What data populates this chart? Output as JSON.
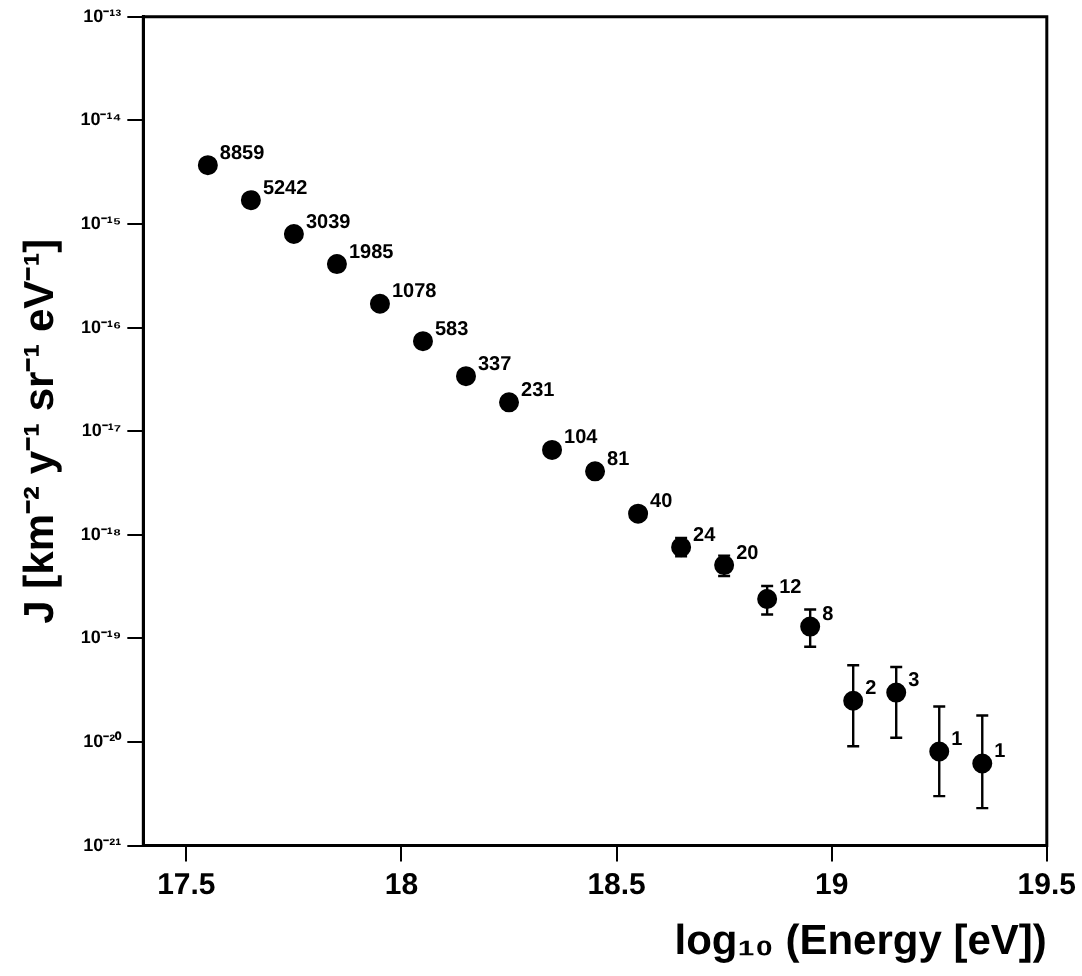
{
  "chart_data": {
    "type": "scatter",
    "xlabel": "log₁₀ (Energy [eV])",
    "ylabel": "J [km⁻² y⁻¹ sr⁻¹ eV⁻¹]",
    "log": "y",
    "grid": false,
    "marker": "circle",
    "xlim": [
      17.4,
      19.5
    ],
    "xticks": [
      17.5,
      18,
      18.5,
      19,
      19.5
    ],
    "ylim": [
      1e-21,
      1e-13
    ],
    "yticks": [
      {
        "value": 1e-21,
        "label": "10⁻²¹"
      },
      {
        "value": 1e-20,
        "label": "10⁻²⁰"
      },
      {
        "value": 1e-19,
        "label": "10⁻¹⁹"
      },
      {
        "value": 1e-18,
        "label": "10⁻¹⁸"
      },
      {
        "value": 1e-17,
        "label": "10⁻¹⁷"
      },
      {
        "value": 1e-16,
        "label": "10⁻¹⁶"
      },
      {
        "value": 1e-15,
        "label": "10⁻¹⁵"
      },
      {
        "value": 1e-14,
        "label": "10⁻¹⁴"
      },
      {
        "value": 1e-13,
        "label": "10⁻¹³"
      }
    ],
    "series": [
      {
        "color": "#000000",
        "x": [
          17.55,
          17.65,
          17.75,
          17.85,
          17.95,
          18.05,
          18.15,
          18.25,
          18.35,
          18.45,
          18.55,
          18.65,
          18.75,
          18.85,
          18.95,
          19.05,
          19.15,
          19.25,
          19.35
        ],
        "values": [
          3.7e-15,
          1.7e-15,
          8e-16,
          4.1e-16,
          1.7e-16,
          7.4e-17,
          3.4e-17,
          1.9e-17,
          6.6e-18,
          4.1e-18,
          1.6e-18,
          7.6e-19,
          5.1e-19,
          2.4e-19,
          1.3e-19,
          2.5e-20,
          3e-20,
          8.1e-21,
          6.2e-21
        ],
        "errors": [
          null,
          null,
          null,
          null,
          null,
          null,
          null,
          null,
          null,
          null,
          null,
          [
            6.2e-19,
            9.3e-19
          ],
          [
            4e-19,
            6.3e-19
          ],
          [
            1.7e-19,
            3.2e-19
          ],
          [
            8.3e-20,
            1.9e-19
          ],
          [
            9.1e-21,
            5.5e-20
          ],
          [
            1.1e-20,
            5.3e-20
          ],
          [
            3e-21,
            2.2e-20
          ],
          [
            2.3e-21,
            1.8e-20
          ]
        ]
      }
    ],
    "annotations": [
      {
        "text": "8859",
        "x": 17.55,
        "y": 3.7e-15
      },
      {
        "text": "5242",
        "x": 17.65,
        "y": 1.7e-15
      },
      {
        "text": "3039",
        "x": 17.75,
        "y": 8e-16
      },
      {
        "text": "1985",
        "x": 17.85,
        "y": 4.1e-16
      },
      {
        "text": "1078",
        "x": 17.95,
        "y": 1.7e-16
      },
      {
        "text": "583",
        "x": 18.05,
        "y": 7.4e-17
      },
      {
        "text": "337",
        "x": 18.15,
        "y": 3.4e-17
      },
      {
        "text": "231",
        "x": 18.25,
        "y": 1.9e-17
      },
      {
        "text": "104",
        "x": 18.35,
        "y": 6.6e-18
      },
      {
        "text": "81",
        "x": 18.45,
        "y": 4.1e-18
      },
      {
        "text": "40",
        "x": 18.55,
        "y": 1.6e-18
      },
      {
        "text": "24",
        "x": 18.65,
        "y": 7.6e-19
      },
      {
        "text": "20",
        "x": 18.75,
        "y": 5.1e-19
      },
      {
        "text": "12",
        "x": 18.85,
        "y": 2.4e-19
      },
      {
        "text": "8",
        "x": 18.95,
        "y": 1.3e-19
      },
      {
        "text": "2",
        "x": 19.05,
        "y": 2.5e-20
      },
      {
        "text": "3",
        "x": 19.15,
        "y": 3e-20
      },
      {
        "text": "1",
        "x": 19.25,
        "y": 8.1e-21
      },
      {
        "text": "1",
        "x": 19.35,
        "y": 6.2e-21
      }
    ]
  }
}
